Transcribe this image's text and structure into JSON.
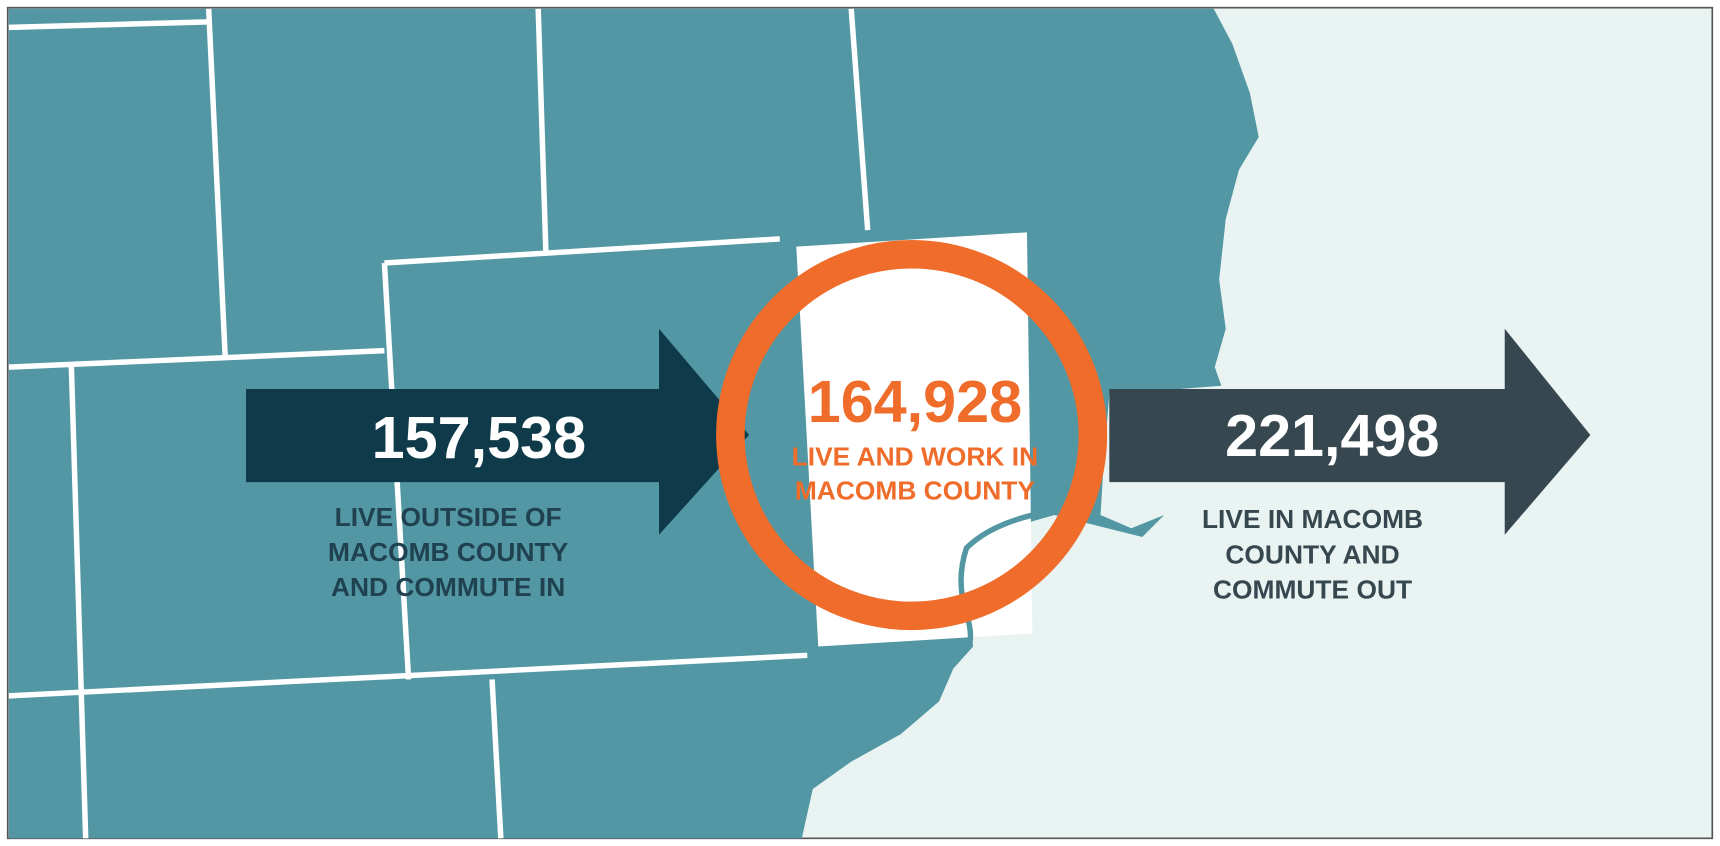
{
  "commute_in": {
    "value": "157,538",
    "label": [
      "LIVE OUTSIDE OF",
      "MACOMB COUNTY",
      "AND COMMUTE IN"
    ]
  },
  "live_and_work": {
    "value": "164,928",
    "label": [
      "LIVE AND WORK IN",
      "MACOMB COUNTY"
    ]
  },
  "commute_out": {
    "value": "221,498",
    "label": [
      "LIVE IN MACOMB",
      "COUNTY AND",
      "COMMUTE OUT"
    ]
  }
}
